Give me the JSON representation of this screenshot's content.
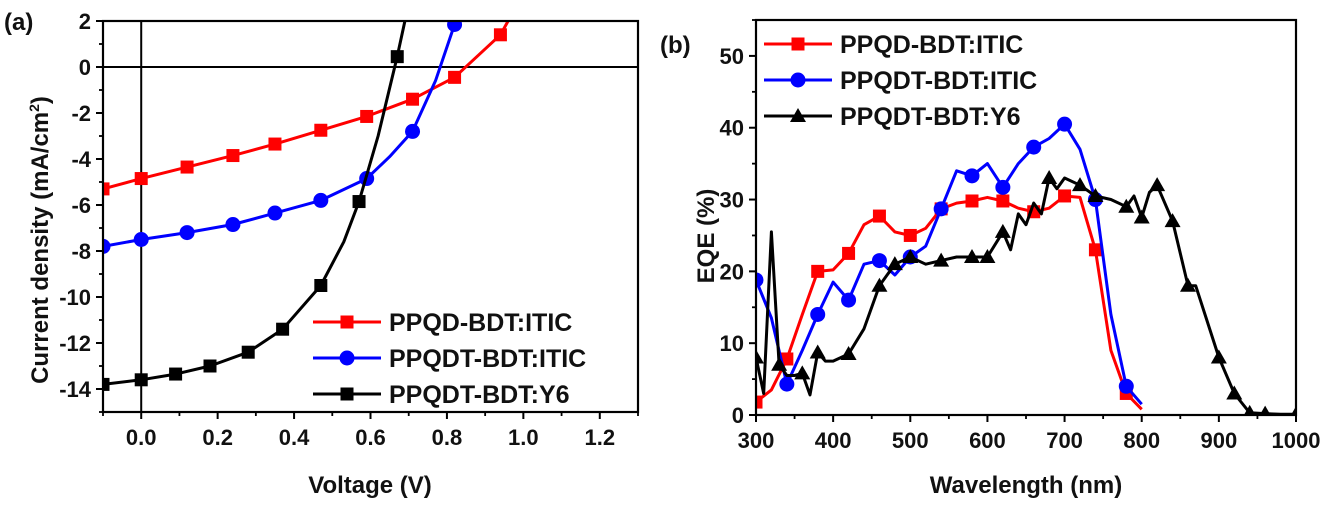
{
  "chart_data": [
    {
      "panel_label": "(a)",
      "type": "line",
      "title": "",
      "xlabel": "Voltage (V)",
      "ylabel": "Current density (mA/cm",
      "ylabel_superscript": "2",
      "ylabel_suffix": ")",
      "xlim": [
        -0.1,
        1.3
      ],
      "ylim": [
        -15,
        2
      ],
      "xticks": [
        "0.0",
        "0.2",
        "0.4",
        "0.6",
        "0.8",
        "1.0",
        "1.2"
      ],
      "xtick_values": [
        0.0,
        0.2,
        0.4,
        0.6,
        0.8,
        1.0,
        1.2
      ],
      "yticks": [
        "2",
        "0",
        "-2",
        "-4",
        "-6",
        "-8",
        "-10",
        "-12",
        "-14"
      ],
      "ytick_values": [
        2,
        0,
        -2,
        -4,
        -6,
        -8,
        -10,
        -12,
        -14
      ],
      "grid": false,
      "reference_lines": {
        "x": 0,
        "y": 0
      },
      "legend_position": "bottom-right",
      "series": [
        {
          "name": "PPQD-BDT:ITIC",
          "color": "#ff0000",
          "marker": "square",
          "x": [
            -0.1,
            0.0,
            0.12,
            0.24,
            0.35,
            0.47,
            0.59,
            0.71,
            0.82,
            0.94,
            0.96
          ],
          "y": [
            -5.3,
            -4.85,
            -4.35,
            -3.85,
            -3.35,
            -2.75,
            -2.15,
            -1.4,
            -0.45,
            1.4,
            2.0
          ],
          "marker_indices": [
            0,
            1,
            2,
            3,
            4,
            5,
            6,
            7,
            8,
            9
          ]
        },
        {
          "name": "PPQDT-BDT:ITIC",
          "color": "#0000ff",
          "marker": "circle",
          "x": [
            -0.1,
            0.0,
            0.12,
            0.24,
            0.35,
            0.47,
            0.59,
            0.65,
            0.71,
            0.77,
            0.82
          ],
          "y": [
            -7.8,
            -7.5,
            -7.2,
            -6.85,
            -6.35,
            -5.8,
            -4.85,
            -3.9,
            -2.8,
            -0.6,
            1.85
          ],
          "marker_indices": [
            0,
            1,
            2,
            3,
            4,
            5,
            6,
            8,
            10
          ]
        },
        {
          "name": "PPQDT-BDT:Y6",
          "color": "#000000",
          "marker": "square",
          "x": [
            -0.1,
            0.0,
            0.09,
            0.18,
            0.28,
            0.37,
            0.47,
            0.53,
            0.57,
            0.62,
            0.67,
            0.69
          ],
          "y": [
            -13.8,
            -13.6,
            -13.35,
            -13.0,
            -12.4,
            -11.4,
            -9.5,
            -7.6,
            -5.85,
            -3.0,
            0.45,
            2.0
          ],
          "marker_indices": [
            0,
            1,
            2,
            3,
            4,
            5,
            6,
            8,
            10
          ]
        }
      ]
    },
    {
      "panel_label": "(b)",
      "type": "line",
      "title": "",
      "xlabel": "Wavelength (nm)",
      "ylabel": "EQE (%)",
      "xlim": [
        300,
        1000
      ],
      "ylim": [
        0,
        55
      ],
      "xticks": [
        "300",
        "400",
        "500",
        "600",
        "700",
        "800",
        "900",
        "1000"
      ],
      "xtick_values": [
        300,
        400,
        500,
        600,
        700,
        800,
        900,
        1000
      ],
      "yticks": [
        "0",
        "10",
        "20",
        "30",
        "40",
        "50"
      ],
      "ytick_values": [
        0,
        10,
        20,
        30,
        40,
        50
      ],
      "grid": false,
      "legend_position": "top-left",
      "series": [
        {
          "name": "PPQD-BDT:ITIC",
          "color": "#ff0000",
          "marker": "square",
          "x": [
            300,
            320,
            340,
            360,
            380,
            400,
            420,
            440,
            460,
            480,
            500,
            520,
            540,
            560,
            580,
            600,
            620,
            640,
            660,
            680,
            700,
            720,
            740,
            760,
            780,
            800
          ],
          "y": [
            1.8,
            3.5,
            7.8,
            14.0,
            20.0,
            20.2,
            22.5,
            26.5,
            27.7,
            25.5,
            25.0,
            26.0,
            28.7,
            29.5,
            29.8,
            30.3,
            29.8,
            28.8,
            28.3,
            28.8,
            30.5,
            30.3,
            23.0,
            9.0,
            3.0,
            0.8
          ],
          "marker_indices": [
            0,
            2,
            4,
            6,
            8,
            10,
            12,
            14,
            16,
            18,
            20,
            22,
            24
          ]
        },
        {
          "name": "PPQDT-BDT:ITIC",
          "color": "#0000ff",
          "marker": "circle",
          "x": [
            300,
            320,
            340,
            360,
            380,
            400,
            420,
            440,
            460,
            480,
            500,
            520,
            540,
            560,
            580,
            600,
            620,
            640,
            660,
            680,
            700,
            720,
            740,
            760,
            780,
            800
          ],
          "y": [
            18.8,
            13.5,
            4.3,
            9.0,
            14.0,
            18.5,
            16.0,
            21.0,
            21.5,
            19.5,
            22.0,
            23.5,
            28.7,
            34.0,
            33.3,
            35.0,
            31.7,
            35.0,
            37.3,
            38.5,
            40.5,
            37.0,
            30.0,
            14.0,
            4.0,
            1.5
          ],
          "marker_indices": [
            0,
            2,
            4,
            6,
            8,
            10,
            12,
            14,
            16,
            18,
            20,
            22,
            24
          ]
        },
        {
          "name": "PPQDT-BDT:Y6",
          "color": "#000000",
          "marker": "triangle",
          "x": [
            300,
            310,
            320,
            330,
            340,
            350,
            360,
            370,
            380,
            390,
            400,
            420,
            440,
            460,
            480,
            500,
            520,
            540,
            560,
            580,
            600,
            620,
            630,
            640,
            650,
            660,
            670,
            680,
            690,
            700,
            720,
            740,
            760,
            780,
            790,
            800,
            810,
            820,
            840,
            860,
            870,
            900,
            920,
            940,
            960,
            980,
            1000
          ],
          "y": [
            8.0,
            3.0,
            25.5,
            7.0,
            5.5,
            5.5,
            5.8,
            2.8,
            8.7,
            7.5,
            7.5,
            8.5,
            12.0,
            18.0,
            21.0,
            22.0,
            21.0,
            21.5,
            22.0,
            22.0,
            22.0,
            25.5,
            23.0,
            28.0,
            26.5,
            29.5,
            28.0,
            33.0,
            31.5,
            33.0,
            32.0,
            30.5,
            30.0,
            29.0,
            30.5,
            27.5,
            31.0,
            32.0,
            27.0,
            18.0,
            18.0,
            8.0,
            3.0,
            0.3,
            0.2,
            0.1,
            0.1
          ],
          "marker_indices": [
            0,
            3,
            6,
            8,
            11,
            13,
            14,
            15,
            17,
            19,
            20,
            21,
            27,
            30,
            31,
            33,
            35,
            37,
            38,
            39,
            41,
            42,
            43,
            44,
            46
          ]
        }
      ]
    }
  ]
}
